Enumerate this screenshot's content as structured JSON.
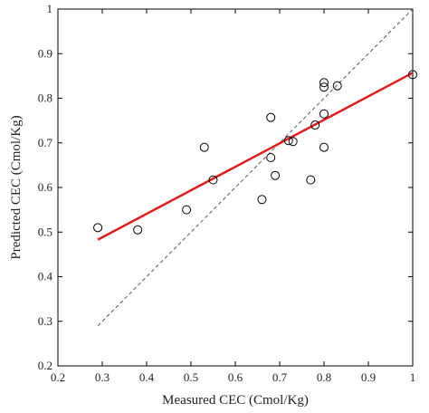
{
  "chart_data": {
    "type": "scatter",
    "title": "",
    "xlabel": "Measured CEC (Cmol/Kg)",
    "ylabel": "Predicted CEC (Cmol/Kg)",
    "xlim": [
      0.2,
      1.0
    ],
    "ylim": [
      0.2,
      1.0
    ],
    "xticks": [
      "0.2",
      "0.3",
      "0.4",
      "0.5",
      "0.6",
      "0.7",
      "0.8",
      "0.9",
      "1"
    ],
    "yticks": [
      "0.2",
      "0.3",
      "0.4",
      "0.5",
      "0.6",
      "0.7",
      "0.8",
      "0.9",
      "1"
    ],
    "grid": false,
    "series": [
      {
        "kind": "points",
        "marker": "open-circle",
        "x": [
          0.29,
          0.38,
          0.49,
          0.53,
          0.55,
          0.66,
          0.68,
          0.68,
          0.69,
          0.72,
          0.73,
          0.77,
          0.78,
          0.8,
          0.8,
          0.8,
          0.8,
          0.83,
          1.0
        ],
        "y": [
          0.51,
          0.505,
          0.55,
          0.69,
          0.617,
          0.573,
          0.757,
          0.667,
          0.627,
          0.705,
          0.703,
          0.617,
          0.74,
          0.835,
          0.825,
          0.765,
          0.69,
          0.828,
          0.853
        ]
      },
      {
        "kind": "fit-line",
        "color": "#e41a1c",
        "x": [
          0.29,
          1.0
        ],
        "y": [
          0.483,
          0.857
        ]
      },
      {
        "kind": "reference-line",
        "style": "dashed",
        "color": "#555555",
        "x": [
          0.29,
          1.0
        ],
        "y": [
          0.29,
          1.0
        ]
      }
    ]
  }
}
